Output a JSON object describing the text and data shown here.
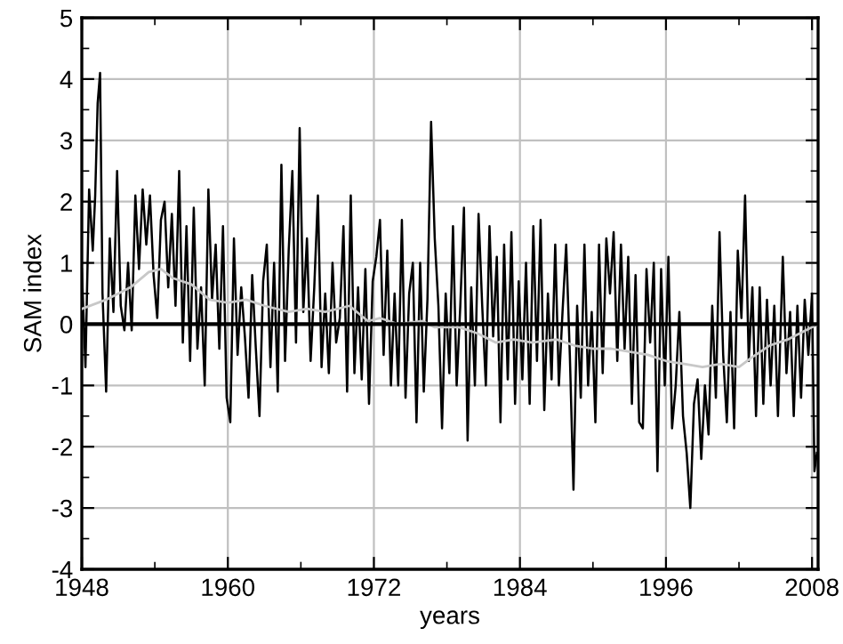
{
  "chart_data": {
    "type": "line",
    "xlabel": "years",
    "ylabel": "SAM index",
    "xlim": [
      1948,
      2008.5
    ],
    "xticks": [
      1948,
      1960,
      1972,
      1984,
      1996,
      2008
    ],
    "ylim": [
      -4,
      5
    ],
    "yticks": [
      -4,
      -3,
      -2,
      -1,
      0,
      1,
      2,
      3,
      4,
      5
    ],
    "grid": true,
    "legend": false,
    "marker": "none",
    "line_style": "solid",
    "ref_lines": [
      {
        "axis": "y",
        "value": 0,
        "color": "#000000"
      }
    ],
    "series": [
      {
        "color": "#000000",
        "x": [
          1948.0,
          1948.3,
          1948.6,
          1948.9,
          1949.1,
          1949.3,
          1949.5,
          1949.7,
          1950.0,
          1950.3,
          1950.6,
          1950.9,
          1951.2,
          1951.5,
          1951.8,
          1952.1,
          1952.4,
          1952.7,
          1953.0,
          1953.3,
          1953.6,
          1953.9,
          1954.2,
          1954.5,
          1954.8,
          1955.1,
          1955.4,
          1955.7,
          1956.0,
          1956.3,
          1956.6,
          1956.9,
          1957.2,
          1957.5,
          1957.8,
          1958.1,
          1958.4,
          1958.7,
          1959.0,
          1959.3,
          1959.6,
          1959.9,
          1960.2,
          1960.5,
          1960.8,
          1961.1,
          1961.4,
          1961.7,
          1962.0,
          1962.3,
          1962.6,
          1962.9,
          1963.2,
          1963.5,
          1963.8,
          1964.1,
          1964.4,
          1964.7,
          1965.0,
          1965.3,
          1965.6,
          1965.9,
          1966.2,
          1966.5,
          1966.8,
          1967.1,
          1967.4,
          1967.7,
          1968.0,
          1968.3,
          1968.6,
          1968.9,
          1969.2,
          1969.5,
          1969.8,
          1970.1,
          1970.4,
          1970.7,
          1971.0,
          1971.3,
          1971.6,
          1971.9,
          1972.2,
          1972.5,
          1972.8,
          1973.1,
          1973.4,
          1973.7,
          1974.0,
          1974.3,
          1974.6,
          1974.9,
          1975.2,
          1975.5,
          1975.8,
          1976.1,
          1976.4,
          1976.7,
          1977.0,
          1977.3,
          1977.6,
          1977.9,
          1978.2,
          1978.5,
          1978.8,
          1979.1,
          1979.4,
          1979.7,
          1980.0,
          1980.3,
          1980.6,
          1980.9,
          1981.2,
          1981.5,
          1981.8,
          1982.1,
          1982.4,
          1982.7,
          1983.0,
          1983.3,
          1983.6,
          1983.9,
          1984.2,
          1984.5,
          1984.8,
          1985.1,
          1985.4,
          1985.7,
          1986.0,
          1986.3,
          1986.6,
          1986.9,
          1987.2,
          1987.5,
          1987.8,
          1988.1,
          1988.4,
          1988.7,
          1989.0,
          1989.3,
          1989.6,
          1989.9,
          1990.2,
          1990.5,
          1990.8,
          1991.1,
          1991.4,
          1991.7,
          1992.0,
          1992.3,
          1992.6,
          1992.9,
          1993.2,
          1993.5,
          1993.8,
          1994.1,
          1994.4,
          1994.7,
          1995.0,
          1995.3,
          1995.6,
          1995.9,
          1996.2,
          1996.5,
          1996.8,
          1997.1,
          1997.4,
          1997.7,
          1998.0,
          1998.3,
          1998.6,
          1998.9,
          1999.2,
          1999.5,
          1999.8,
          2000.1,
          2000.4,
          2000.7,
          2001.0,
          2001.3,
          2001.6,
          2001.9,
          2002.2,
          2002.5,
          2002.8,
          2003.1,
          2003.4,
          2003.7,
          2004.0,
          2004.3,
          2004.6,
          2004.9,
          2005.2,
          2005.6,
          2005.9,
          2006.2,
          2006.5,
          2006.8,
          2007.1,
          2007.4,
          2007.7,
          2008.0,
          2008.2,
          2008.4
        ],
        "values": [
          0.9,
          -0.7,
          2.2,
          1.2,
          2.1,
          3.6,
          4.1,
          0.5,
          -1.1,
          1.4,
          0.2,
          2.5,
          0.3,
          -0.1,
          1.0,
          -0.1,
          2.1,
          0.9,
          2.2,
          1.3,
          2.1,
          0.8,
          0.1,
          1.7,
          2.0,
          0.6,
          1.8,
          0.3,
          2.5,
          -0.3,
          1.6,
          -0.6,
          1.9,
          -0.4,
          0.6,
          -1.0,
          2.2,
          0.4,
          1.3,
          -0.4,
          1.6,
          -1.2,
          -1.6,
          1.4,
          -0.5,
          0.6,
          -0.2,
          -1.2,
          0.8,
          -0.4,
          -1.5,
          0.7,
          1.3,
          -0.7,
          1.0,
          -1.1,
          2.6,
          -0.6,
          1.2,
          2.5,
          -0.3,
          3.2,
          0.2,
          1.4,
          -0.6,
          0.6,
          2.1,
          -0.7,
          0.5,
          -0.8,
          1.0,
          -0.3,
          0.1,
          1.6,
          -1.1,
          2.1,
          -0.8,
          0.6,
          -0.9,
          0.9,
          -1.3,
          0.7,
          1.1,
          1.7,
          -0.5,
          1.2,
          -1.0,
          0.5,
          -1.0,
          1.7,
          -1.2,
          0.5,
          1.0,
          -1.6,
          1.0,
          -1.1,
          0.4,
          3.3,
          1.4,
          0.3,
          -1.7,
          0.5,
          -0.8,
          1.6,
          -1.0,
          0.3,
          1.9,
          -1.9,
          0.6,
          -1.0,
          1.8,
          0.3,
          -1.0,
          1.6,
          -0.2,
          1.1,
          -1.6,
          1.3,
          -0.9,
          1.5,
          -1.3,
          0.7,
          -0.9,
          1.0,
          -1.3,
          1.6,
          -0.6,
          1.7,
          -1.4,
          0.5,
          -0.9,
          1.3,
          -1.0,
          0.2,
          1.3,
          -0.5,
          -2.7,
          0.3,
          -1.2,
          1.3,
          -1.0,
          0.2,
          -1.6,
          1.3,
          -0.8,
          1.4,
          0.5,
          1.5,
          -0.6,
          1.3,
          -0.4,
          1.1,
          -1.3,
          0.8,
          -1.6,
          -1.7,
          0.9,
          -0.3,
          1.0,
          -2.4,
          0.9,
          -1.0,
          1.1,
          -1.7,
          -1.0,
          0.2,
          -1.5,
          -2.1,
          -3.0,
          -1.3,
          -0.9,
          -2.2,
          -1.0,
          -1.8,
          0.3,
          -1.2,
          1.5,
          -0.5,
          -1.6,
          0.2,
          -1.7,
          1.2,
          0.1,
          2.1,
          -0.6,
          0.6,
          -1.5,
          0.6,
          -1.3,
          0.4,
          -1.0,
          0.3,
          -1.5,
          1.1,
          -0.8,
          0.2,
          -1.5,
          0.3,
          -1.2,
          0.4,
          -0.5,
          0.5,
          -2.4,
          -2.1
        ]
      },
      {
        "color": "#c8c8c8",
        "x": [
          1948,
          1950,
          1952,
          1953.5,
          1954.5,
          1955.5,
          1957,
          1958.5,
          1960,
          1961.5,
          1963,
          1965,
          1966.5,
          1968,
          1970,
          1971.5,
          1972.5,
          1974,
          1976,
          1977,
          1979,
          1980.5,
          1982,
          1983.5,
          1985,
          1987,
          1988.5,
          1990,
          1991.5,
          1993,
          1994.5,
          1996,
          1997.5,
          1999,
          2000.5,
          2002,
          2003,
          2004.5,
          2006,
          2007.5,
          2008.5
        ],
        "values": [
          0.25,
          0.4,
          0.6,
          0.85,
          0.9,
          0.75,
          0.65,
          0.4,
          0.35,
          0.4,
          0.3,
          0.2,
          0.25,
          0.2,
          0.3,
          0.05,
          0.1,
          0.0,
          0.05,
          -0.05,
          -0.05,
          -0.15,
          -0.3,
          -0.25,
          -0.3,
          -0.25,
          -0.35,
          -0.4,
          -0.4,
          -0.45,
          -0.5,
          -0.6,
          -0.65,
          -0.7,
          -0.65,
          -0.7,
          -0.55,
          -0.35,
          -0.25,
          -0.1,
          0.0
        ]
      }
    ]
  }
}
